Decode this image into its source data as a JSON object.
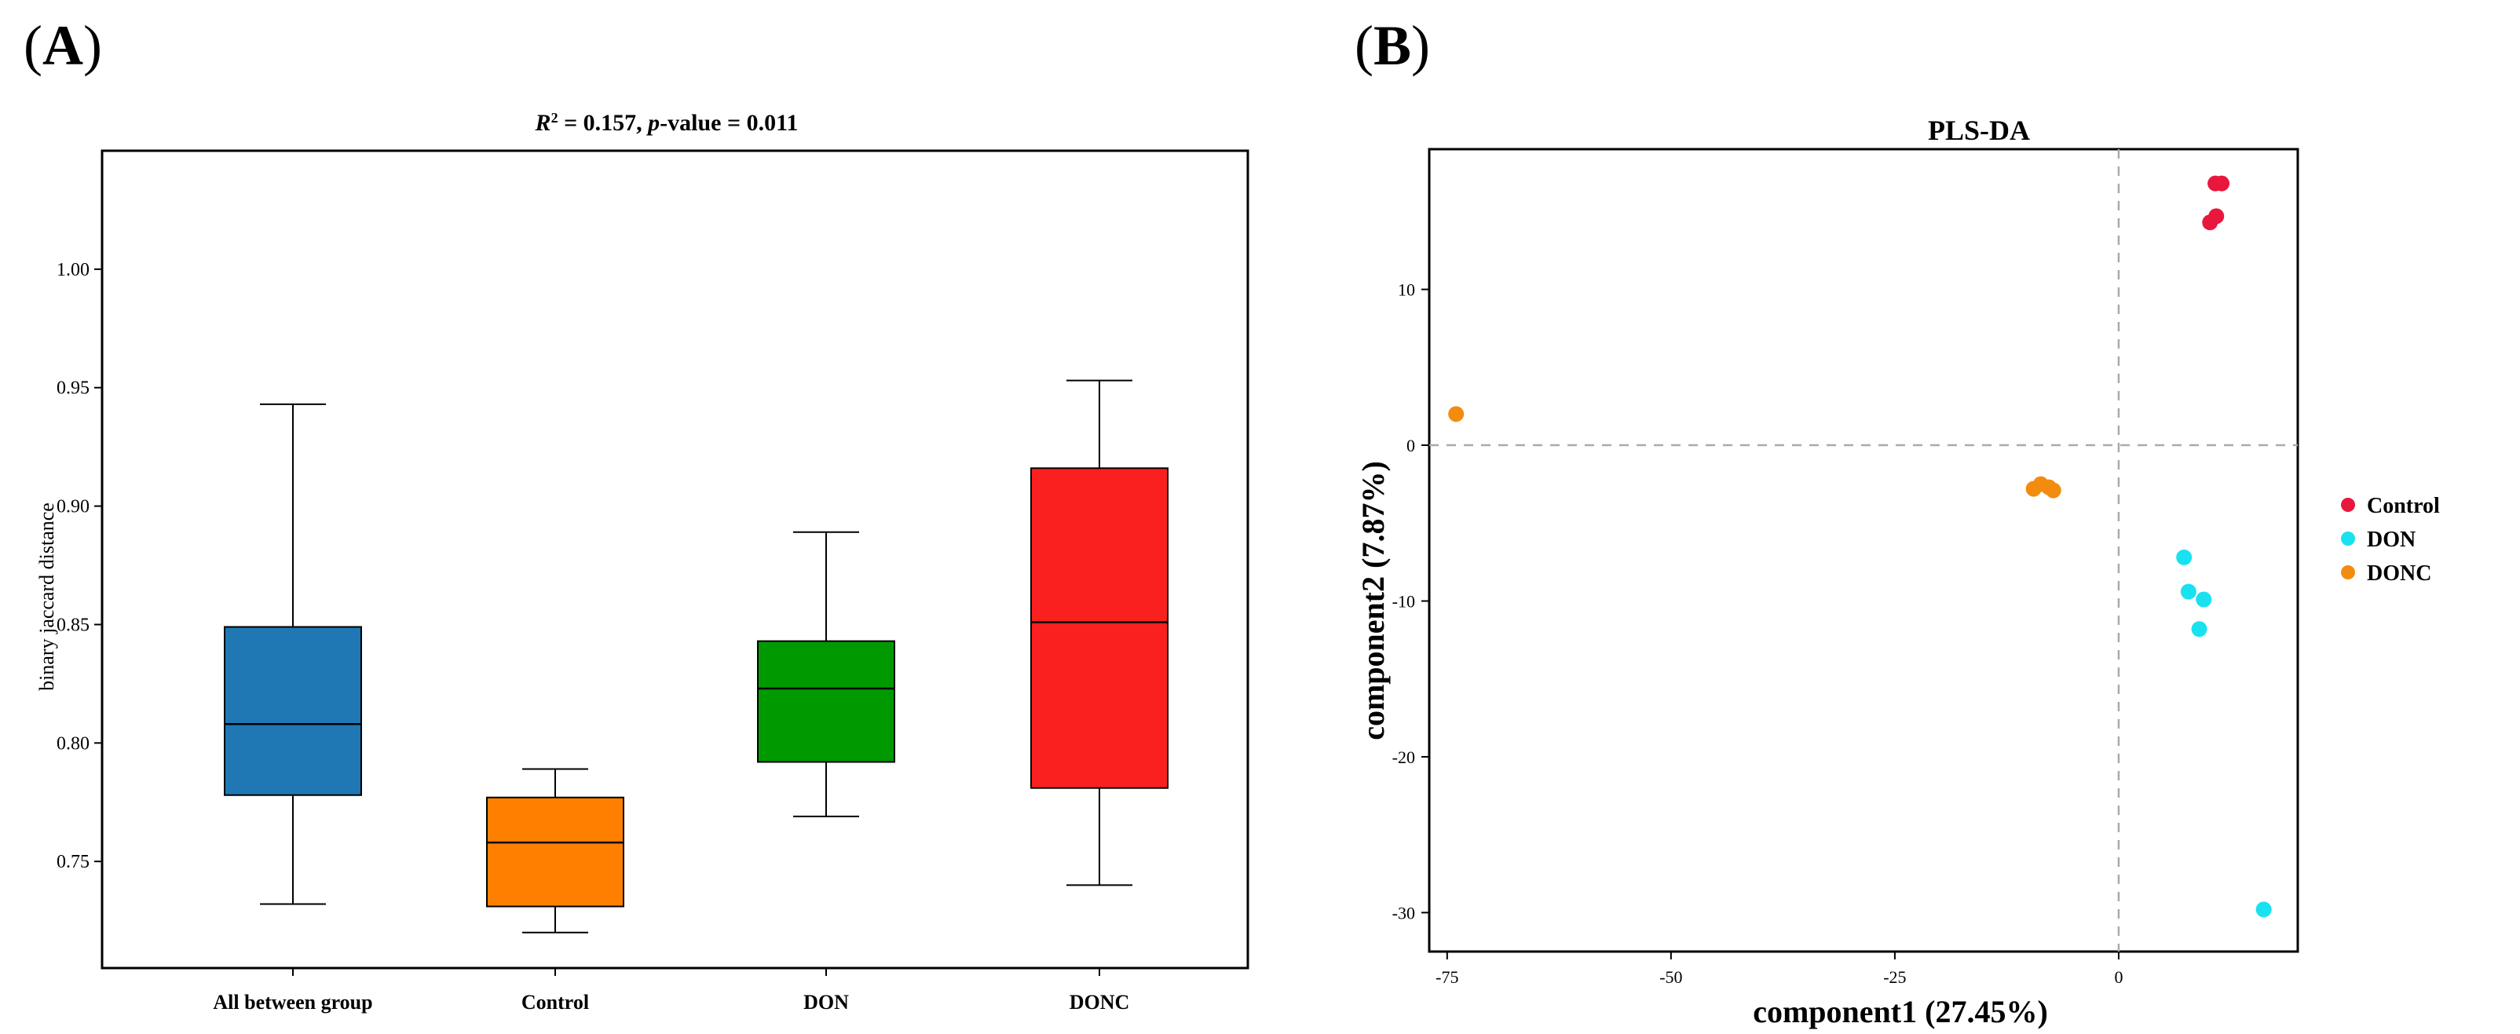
{
  "panels": {
    "a_label": "A",
    "b_label": "B"
  },
  "chart_data": [
    {
      "type": "box",
      "title_r2": "R",
      "title_sup": "2",
      "title_r2_value": " = 0.157, ",
      "title_p": "p",
      "title_p_value": "-value = 0.011",
      "ylabel": "binary jaccard distance",
      "ylim": [
        0.705,
        1.05
      ],
      "yticks": [
        "0.75",
        "0.80",
        "0.85",
        "0.90",
        "0.95",
        "1.00"
      ],
      "categories": [
        "All between group",
        "Control",
        "DON",
        "DONC"
      ],
      "boxes": [
        {
          "name": "All between group",
          "min": 0.732,
          "q1": 0.778,
          "median": 0.808,
          "q3": 0.849,
          "max": 0.943,
          "color": "#1f78b4"
        },
        {
          "name": "Control",
          "min": 0.72,
          "q1": 0.731,
          "median": 0.758,
          "q3": 0.777,
          "max": 0.789,
          "color": "#ff7f00"
        },
        {
          "name": "DON",
          "min": 0.769,
          "q1": 0.792,
          "median": 0.823,
          "q3": 0.843,
          "max": 0.889,
          "color": "#009a00"
        },
        {
          "name": "DONC",
          "min": 0.74,
          "q1": 0.781,
          "median": 0.851,
          "q3": 0.916,
          "max": 0.953,
          "color": "#fa2020"
        }
      ]
    },
    {
      "type": "scatter",
      "title": "PLS-DA",
      "xlabel": "component1 (27.45%)",
      "ylabel": "component2 (7.87%)",
      "xlim": [
        -77,
        20
      ],
      "ylim": [
        -32.5,
        19
      ],
      "xticks": [
        "-75",
        "-50",
        "-25",
        "0"
      ],
      "yticks": [
        "10",
        "0",
        "-10",
        "-20",
        "-30"
      ],
      "legend_position": "right",
      "series": [
        {
          "name": "Control",
          "color": "#e8173d",
          "points": [
            [
              11.5,
              16.8
            ],
            [
              10.8,
              16.8
            ],
            [
              10.9,
              14.7
            ],
            [
              10.2,
              14.3
            ]
          ]
        },
        {
          "name": "DON",
          "color": "#19e1f0",
          "points": [
            [
              7.3,
              -7.2
            ],
            [
              7.8,
              -9.4
            ],
            [
              9.5,
              -9.9
            ],
            [
              9.0,
              -11.8
            ],
            [
              16.2,
              -29.8
            ]
          ]
        },
        {
          "name": "DONC",
          "color": "#f28c0f",
          "points": [
            [
              -74.0,
              2.0
            ],
            [
              -9.5,
              -2.8
            ],
            [
              -8.7,
              -2.5
            ],
            [
              -7.8,
              -2.7
            ],
            [
              -7.3,
              -2.9
            ]
          ]
        }
      ]
    }
  ]
}
